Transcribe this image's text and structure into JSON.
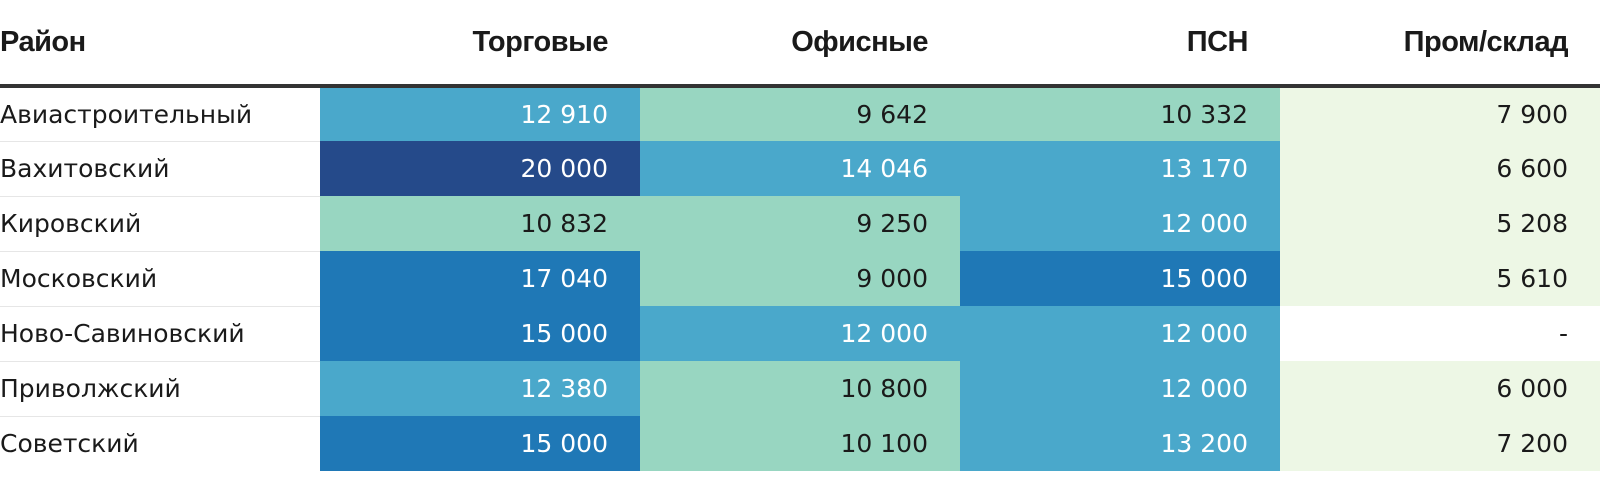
{
  "chart_data": {
    "type": "table",
    "columns": [
      "Район",
      "Торговые",
      "Офисные",
      "ПСН",
      "Пром/склад"
    ],
    "rows": [
      {
        "district": "Авиастроительный",
        "values": [
          "12 910",
          "9 642",
          "10 332",
          "7 900"
        ],
        "numeric": [
          12910,
          9642,
          10332,
          7900
        ]
      },
      {
        "district": "Вахитовский",
        "values": [
          "20 000",
          "14 046",
          "13 170",
          "6 600"
        ],
        "numeric": [
          20000,
          14046,
          13170,
          6600
        ]
      },
      {
        "district": "Кировский",
        "values": [
          "10 832",
          "9 250",
          "12 000",
          "5 208"
        ],
        "numeric": [
          10832,
          9250,
          12000,
          5208
        ]
      },
      {
        "district": "Московский",
        "values": [
          "17 040",
          "9 000",
          "15 000",
          "5 610"
        ],
        "numeric": [
          17040,
          9000,
          15000,
          5610
        ]
      },
      {
        "district": "Ново-Савиновский",
        "values": [
          "15 000",
          "12 000",
          "12 000",
          "-"
        ],
        "numeric": [
          15000,
          12000,
          12000,
          null
        ]
      },
      {
        "district": "Приволжский",
        "values": [
          "12 380",
          "10 800",
          "12 000",
          "6 000"
        ],
        "numeric": [
          12380,
          10800,
          12000,
          6000
        ]
      },
      {
        "district": "Советский",
        "values": [
          "15 000",
          "10 100",
          "13 200",
          "7 200"
        ],
        "numeric": [
          15000,
          10100,
          13200,
          7200
        ]
      }
    ],
    "color_scale": [
      {
        "min": 0,
        "max": 9000,
        "color": "#edf7e5",
        "text": "#1a1a1a"
      },
      {
        "min": 9000,
        "max": 12000,
        "color": "#98d6c1",
        "text": "#1a1a1a"
      },
      {
        "min": 12000,
        "max": 15000,
        "color": "#4aa8cb",
        "text": "#ffffff"
      },
      {
        "min": 15000,
        "max": 20000,
        "color": "#1f78b6",
        "text": "#ffffff"
      },
      {
        "min": 20000,
        "max": 100000,
        "color": "#254a8a",
        "text": "#ffffff"
      }
    ],
    "missing_color": "#ffffff"
  }
}
